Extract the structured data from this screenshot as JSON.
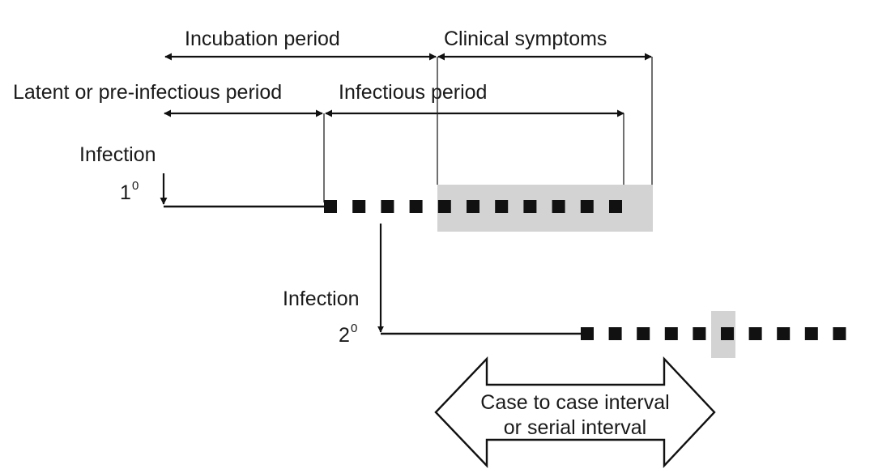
{
  "labels": {
    "incubation_period": "Incubation period",
    "clinical_symptoms": "Clinical symptoms",
    "latent_period": "Latent or pre-infectious period",
    "infectious_period": "Infectious period",
    "infection_primary": "Infection",
    "infection_primary_num": "1",
    "infection_primary_sup": "0",
    "infection_secondary": "Infection",
    "infection_secondary_num": "2",
    "infection_secondary_sup": "0",
    "interval_line1": "Case to case interval",
    "interval_line2": "or serial interval"
  },
  "colors": {
    "ink": "#111111",
    "shade": "#d3d3d3"
  },
  "icons": {
    "horizontal": "double-headed-arrow",
    "vertical": "down-arrow",
    "interval": "block-double-arrow"
  }
}
